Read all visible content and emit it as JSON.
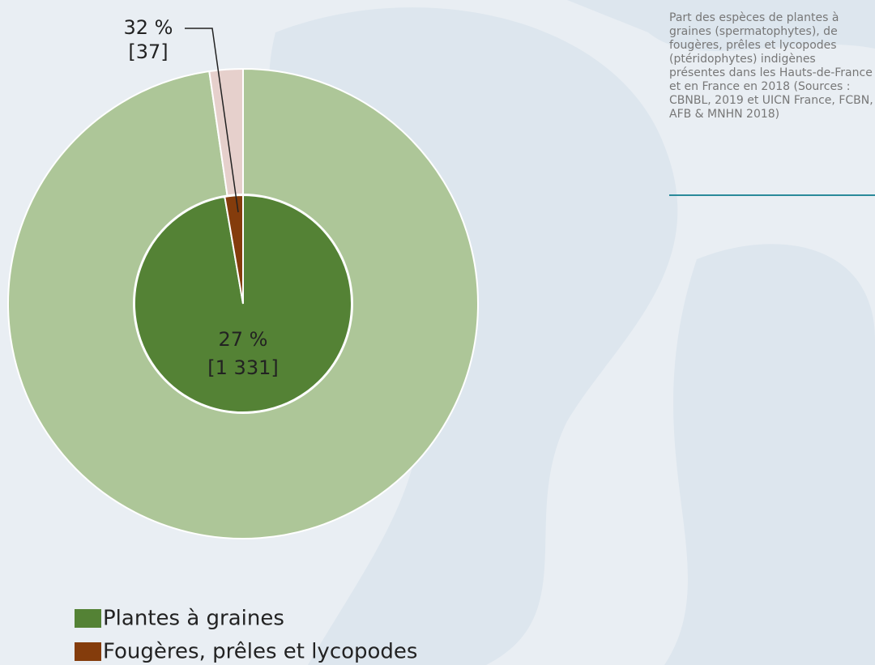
{
  "chart_data": {
    "type": "pie",
    "description": "Part des espèces de plantes à graines (spermatophytes), de fougères, prêles et lycopodes (ptéridophytes) indigènes présentes dans les Hauts-de-France et en France en 2018 (Sources : CBNBL, 2019 et UICN France, FCBN, AFB & MNHN 2018)",
    "categories": [
      "Plantes à graines",
      "Fougères, prêles et lycopodes"
    ],
    "inner": {
      "values": [
        1331,
        37
      ],
      "value_labels": [
        "[1 331]",
        "[37]"
      ],
      "shares": [
        27,
        32
      ],
      "share_labels": [
        "27 %",
        "32 %"
      ],
      "colors": [
        "#548235",
        "#843c0c"
      ]
    },
    "outer": {
      "values": [
        4930,
        116
      ],
      "colors": [
        "#adc698",
        "#e6d0cc"
      ]
    }
  }
}
